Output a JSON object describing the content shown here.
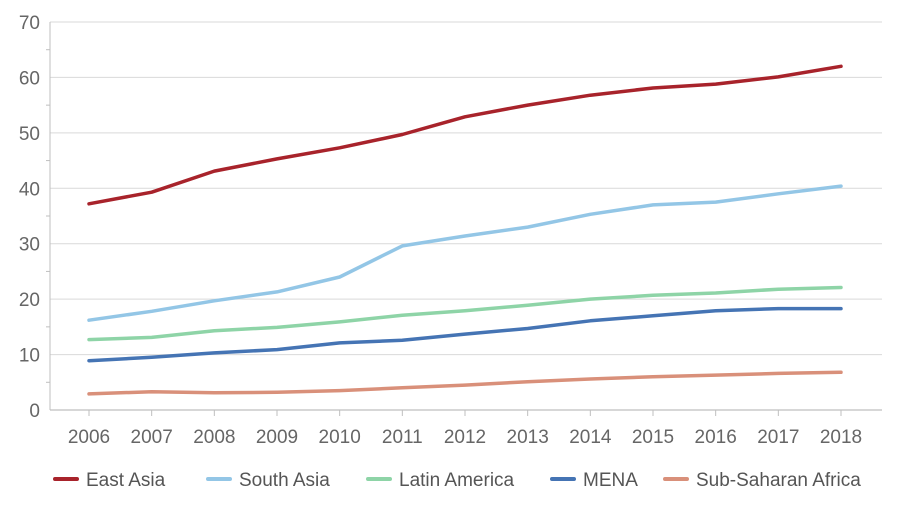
{
  "chart_data": {
    "type": "line",
    "title": "",
    "xlabel": "",
    "ylabel": "",
    "x": [
      2006,
      2007,
      2008,
      2009,
      2010,
      2011,
      2012,
      2013,
      2014,
      2015,
      2016,
      2017,
      2018
    ],
    "ylim": [
      0,
      70
    ],
    "yticks": [
      0,
      10,
      20,
      30,
      40,
      50,
      60,
      70
    ],
    "grid": true,
    "legend_position": "bottom",
    "series": [
      {
        "name": "East Asia",
        "color": "#a8232b",
        "values": [
          37.2,
          39.3,
          43.1,
          45.3,
          47.3,
          49.7,
          52.9,
          55.0,
          56.8,
          58.1,
          58.8,
          60.1,
          62.0
        ]
      },
      {
        "name": "South Asia",
        "color": "#93c6e6",
        "values": [
          16.2,
          17.8,
          19.7,
          21.3,
          24.0,
          29.6,
          31.4,
          33.0,
          35.3,
          37.0,
          37.5,
          39.0,
          40.4
        ]
      },
      {
        "name": "Latin America",
        "color": "#8ed4a7",
        "values": [
          12.7,
          13.1,
          14.3,
          14.9,
          15.9,
          17.1,
          17.9,
          18.9,
          20.0,
          20.7,
          21.1,
          21.8,
          22.1
        ]
      },
      {
        "name": "MENA",
        "color": "#4574b4",
        "values": [
          8.9,
          9.5,
          10.3,
          10.9,
          12.1,
          12.6,
          13.7,
          14.7,
          16.1,
          17.0,
          17.9,
          18.3,
          18.3
        ]
      },
      {
        "name": "Sub-Saharan Africa",
        "color": "#d9907a",
        "values": [
          2.9,
          3.3,
          3.1,
          3.2,
          3.5,
          4.0,
          4.5,
          5.1,
          5.6,
          6.0,
          6.3,
          6.6,
          6.8
        ]
      }
    ]
  }
}
